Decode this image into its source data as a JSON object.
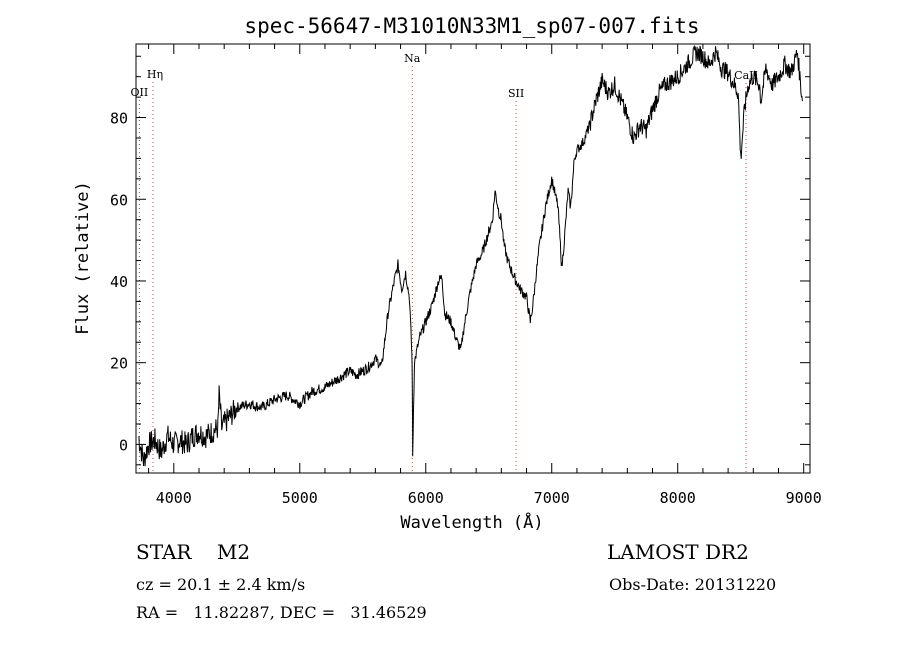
{
  "chart_data": {
    "type": "line",
    "title": "spec-56647-M31010N33M1_sp07-007.fits",
    "xlabel": "Wavelength (Å)",
    "ylabel": "Flux (relative)",
    "xlim": [
      3700,
      9050
    ],
    "ylim": [
      -7,
      98
    ],
    "xticks": [
      4000,
      5000,
      6000,
      7000,
      8000,
      9000
    ],
    "yticks": [
      0,
      20,
      40,
      60,
      80
    ],
    "xtick_labels": [
      "4000",
      "5000",
      "6000",
      "7000",
      "8000",
      "9000"
    ],
    "ytick_labels": [
      "0",
      "20",
      "40",
      "60",
      "80"
    ],
    "lines": [
      {
        "label": "OII",
        "x": 3727
      },
      {
        "label": "Hη",
        "x": 3835
      },
      {
        "label": "Na",
        "x": 5893
      },
      {
        "label": "SII",
        "x": 6717
      },
      {
        "label": "CaII",
        "x": 8542
      }
    ],
    "series": [
      {
        "x": [
          3720,
          3760,
          3800,
          3850,
          3900,
          3950,
          4000,
          4050,
          4100,
          4150,
          4200,
          4250,
          4300,
          4350,
          4360,
          4380,
          4400,
          4450,
          4500,
          4600,
          4700,
          4800,
          4900,
          5000,
          5100,
          5200,
          5300,
          5400,
          5450,
          5500,
          5550,
          5600,
          5650,
          5700,
          5750,
          5780,
          5810,
          5840,
          5870,
          5890,
          5893,
          5896,
          5910,
          5950,
          6000,
          6050,
          6100,
          6130,
          6150,
          6200,
          6250,
          6280,
          6300,
          6350,
          6400,
          6450,
          6500,
          6530,
          6550,
          6580,
          6600,
          6620,
          6650,
          6700,
          6750,
          6800,
          6830,
          6850,
          6870,
          6900,
          6950,
          7000,
          7050,
          7080,
          7100,
          7130,
          7150,
          7180,
          7200,
          7250,
          7300,
          7350,
          7400,
          7450,
          7500,
          7550,
          7600,
          7650,
          7700,
          7750,
          7800,
          7850,
          7900,
          7950,
          8000,
          8050,
          8100,
          8150,
          8200,
          8250,
          8300,
          8350,
          8400,
          8450,
          8480,
          8500,
          8530,
          8560,
          8600,
          8650,
          8660,
          8700,
          8750,
          8800,
          8850,
          8900,
          8950,
          8990
        ],
        "y": [
          2,
          -4,
          0,
          1,
          -2,
          2,
          0,
          1,
          0,
          2,
          3,
          2,
          3,
          4,
          12,
          4,
          5,
          7,
          9,
          10,
          9,
          11,
          12,
          10,
          13,
          14,
          16,
          18,
          17,
          18,
          19,
          21,
          19,
          32,
          40,
          44,
          38,
          42,
          36,
          22,
          15,
          -3,
          20,
          26,
          30,
          34,
          40,
          41,
          32,
          30,
          25,
          23,
          28,
          37,
          44,
          47,
          52,
          55,
          62,
          57,
          55,
          49,
          45,
          41,
          38,
          36,
          30,
          34,
          40,
          48,
          58,
          65,
          58,
          43,
          50,
          62,
          58,
          70,
          72,
          74,
          78,
          84,
          89,
          86,
          88,
          84,
          80,
          75,
          78,
          77,
          82,
          86,
          88,
          89,
          90,
          92,
          94,
          96,
          95,
          93,
          96,
          92,
          91,
          88,
          86,
          70,
          82,
          88,
          90,
          88,
          84,
          92,
          88,
          90,
          93,
          91,
          96,
          84
        ]
      }
    ],
    "grid": false
  },
  "info": {
    "class_line": "STAR    M2",
    "survey": "LAMOST DR2",
    "cz": "cz = 20.1 ± 2.4 km/s",
    "obs_date": "Obs-Date: 20131220",
    "coords": "RA =   11.82287, DEC =   31.46529"
  }
}
